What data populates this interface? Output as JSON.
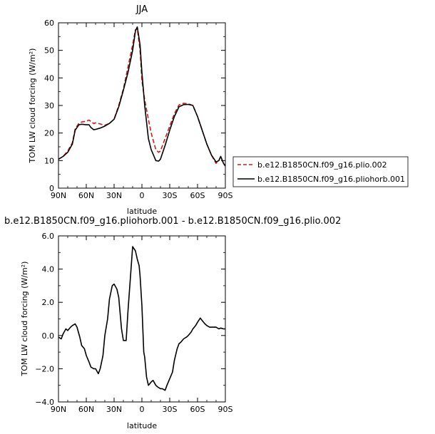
{
  "chart_data": [
    {
      "type": "line",
      "title": "JJA",
      "xlabel": "latitude",
      "ylabel": "TOM LW cloud forcing (W/m²)",
      "xlim": [
        90,
        -90
      ],
      "ylim": [
        0,
        60
      ],
      "x_ticks": [
        90,
        60,
        30,
        0,
        -30,
        -60,
        -90
      ],
      "x_tick_labels": [
        "90N",
        "60N",
        "30N",
        "0",
        "30S",
        "60S",
        "90S"
      ],
      "y_ticks": [
        0,
        10,
        20,
        30,
        40,
        50,
        60
      ],
      "y_tick_labels": [
        "0",
        "10",
        "20",
        "30",
        "40",
        "50",
        "60"
      ],
      "legend": "outside-right",
      "series": [
        {
          "name": "b.e12.B1850CN.f09_g16.plio.002",
          "color": "#d01c1c",
          "dash": "dashed",
          "x": [
            90,
            85,
            80,
            75,
            72,
            68,
            65,
            60,
            57,
            55,
            52,
            50,
            45,
            40,
            35,
            30,
            25,
            20,
            15,
            10,
            7,
            5,
            2,
            0,
            -3,
            -7,
            -10,
            -15,
            -18,
            -20,
            -25,
            -30,
            -35,
            -40,
            -45,
            -50,
            -55,
            -60,
            -65,
            -70,
            -75,
            -80,
            -83,
            -85,
            -88,
            -90
          ],
          "y": [
            10.5,
            11.5,
            13.5,
            16.5,
            21.5,
            23.5,
            24.0,
            24.3,
            24.7,
            24.2,
            23.4,
            23.7,
            23.3,
            22.8,
            23.5,
            25.0,
            30.0,
            36.0,
            44.0,
            52.0,
            57.5,
            58.0,
            50.0,
            39.0,
            32.0,
            25.0,
            20.0,
            14.0,
            13.0,
            13.5,
            18.0,
            22.5,
            27.0,
            30.2,
            30.8,
            30.6,
            30.0,
            26.0,
            21.0,
            16.0,
            12.0,
            9.0,
            10.0,
            11.5,
            9.0,
            8.0
          ]
        },
        {
          "name": "b.e12.B1850CN.f09_g16.pliohorb.001",
          "color": "#000000",
          "dash": "solid",
          "x": [
            90,
            85,
            80,
            75,
            72,
            68,
            65,
            60,
            57,
            55,
            52,
            50,
            45,
            40,
            35,
            30,
            25,
            20,
            15,
            10,
            7,
            5,
            2,
            0,
            -3,
            -7,
            -10,
            -15,
            -18,
            -20,
            -25,
            -30,
            -35,
            -40,
            -45,
            -50,
            -55,
            -60,
            -65,
            -70,
            -75,
            -80,
            -83,
            -85,
            -88,
            -90
          ],
          "y": [
            10.5,
            11.5,
            13.0,
            16.0,
            21.0,
            23.0,
            23.2,
            23.0,
            23.0,
            22.0,
            21.2,
            21.3,
            21.8,
            22.5,
            23.5,
            25.0,
            29.5,
            35.5,
            42.0,
            50.0,
            57.0,
            58.5,
            52.0,
            42.0,
            30.0,
            18.0,
            14.0,
            10.0,
            9.8,
            10.5,
            15.5,
            21.0,
            26.0,
            29.5,
            30.3,
            30.4,
            30.0,
            26.0,
            21.0,
            16.0,
            12.0,
            9.5,
            10.0,
            11.5,
            9.0,
            8.0
          ]
        }
      ]
    },
    {
      "type": "line",
      "title": "b.e12.B1850CN.f09_g16.pliohorb.001 - b.e12.B1850CN.f09_g16.plio.002",
      "xlabel": "latitude",
      "ylabel": "TOM LW cloud forcing (W/m²)",
      "xlim": [
        90,
        -90
      ],
      "ylim": [
        -4.0,
        6.0
      ],
      "x_ticks": [
        90,
        60,
        30,
        0,
        -30,
        -60,
        -90
      ],
      "x_tick_labels": [
        "90N",
        "60N",
        "30N",
        "0",
        "30S",
        "60S",
        "90S"
      ],
      "y_ticks": [
        -4,
        -2,
        0,
        2,
        4,
        6
      ],
      "y_tick_labels": [
        "−4.0",
        "−2.0",
        "0.0",
        "2.0",
        "4.0",
        "6.0"
      ],
      "series": [
        {
          "name": "",
          "color": "#000000",
          "x": [
            90,
            87,
            85,
            82,
            80,
            77,
            75,
            72,
            70,
            67,
            65,
            62,
            60,
            57,
            55,
            52,
            50,
            47,
            45,
            42,
            40,
            37,
            35,
            32,
            30,
            27,
            25,
            22,
            20,
            17,
            15,
            12,
            10,
            7,
            5,
            3,
            2,
            0,
            -2,
            -3,
            -5,
            -7,
            -10,
            -12,
            -15,
            -17,
            -20,
            -22,
            -25,
            -27,
            -30,
            -33,
            -35,
            -38,
            -40,
            -42,
            -45,
            -48,
            -50,
            -53,
            -55,
            -58,
            -60,
            -63,
            -65,
            -68,
            -70,
            -73,
            -75,
            -78,
            -80,
            -83,
            -85,
            -88,
            -90
          ],
          "y": [
            -0.1,
            -0.2,
            0.1,
            0.4,
            0.3,
            0.5,
            0.6,
            0.7,
            0.5,
            -0.1,
            -0.6,
            -0.8,
            -1.2,
            -1.6,
            -1.9,
            -2.0,
            -2.0,
            -2.3,
            -2.0,
            -1.2,
            0.0,
            1.0,
            2.2,
            3.0,
            3.1,
            2.8,
            2.3,
            0.4,
            -0.3,
            -0.3,
            1.5,
            3.8,
            5.35,
            5.1,
            4.6,
            4.2,
            3.6,
            1.8,
            -1.0,
            -1.3,
            -2.5,
            -3.0,
            -2.8,
            -2.7,
            -3.0,
            -3.1,
            -3.2,
            -3.2,
            -3.3,
            -3.0,
            -2.6,
            -2.2,
            -1.5,
            -0.8,
            -0.5,
            -0.4,
            -0.2,
            -0.1,
            0.0,
            0.2,
            0.4,
            0.6,
            0.8,
            1.05,
            0.9,
            0.7,
            0.6,
            0.5,
            0.5,
            0.5,
            0.5,
            0.4,
            0.45,
            0.4,
            0.4
          ]
        }
      ]
    }
  ]
}
